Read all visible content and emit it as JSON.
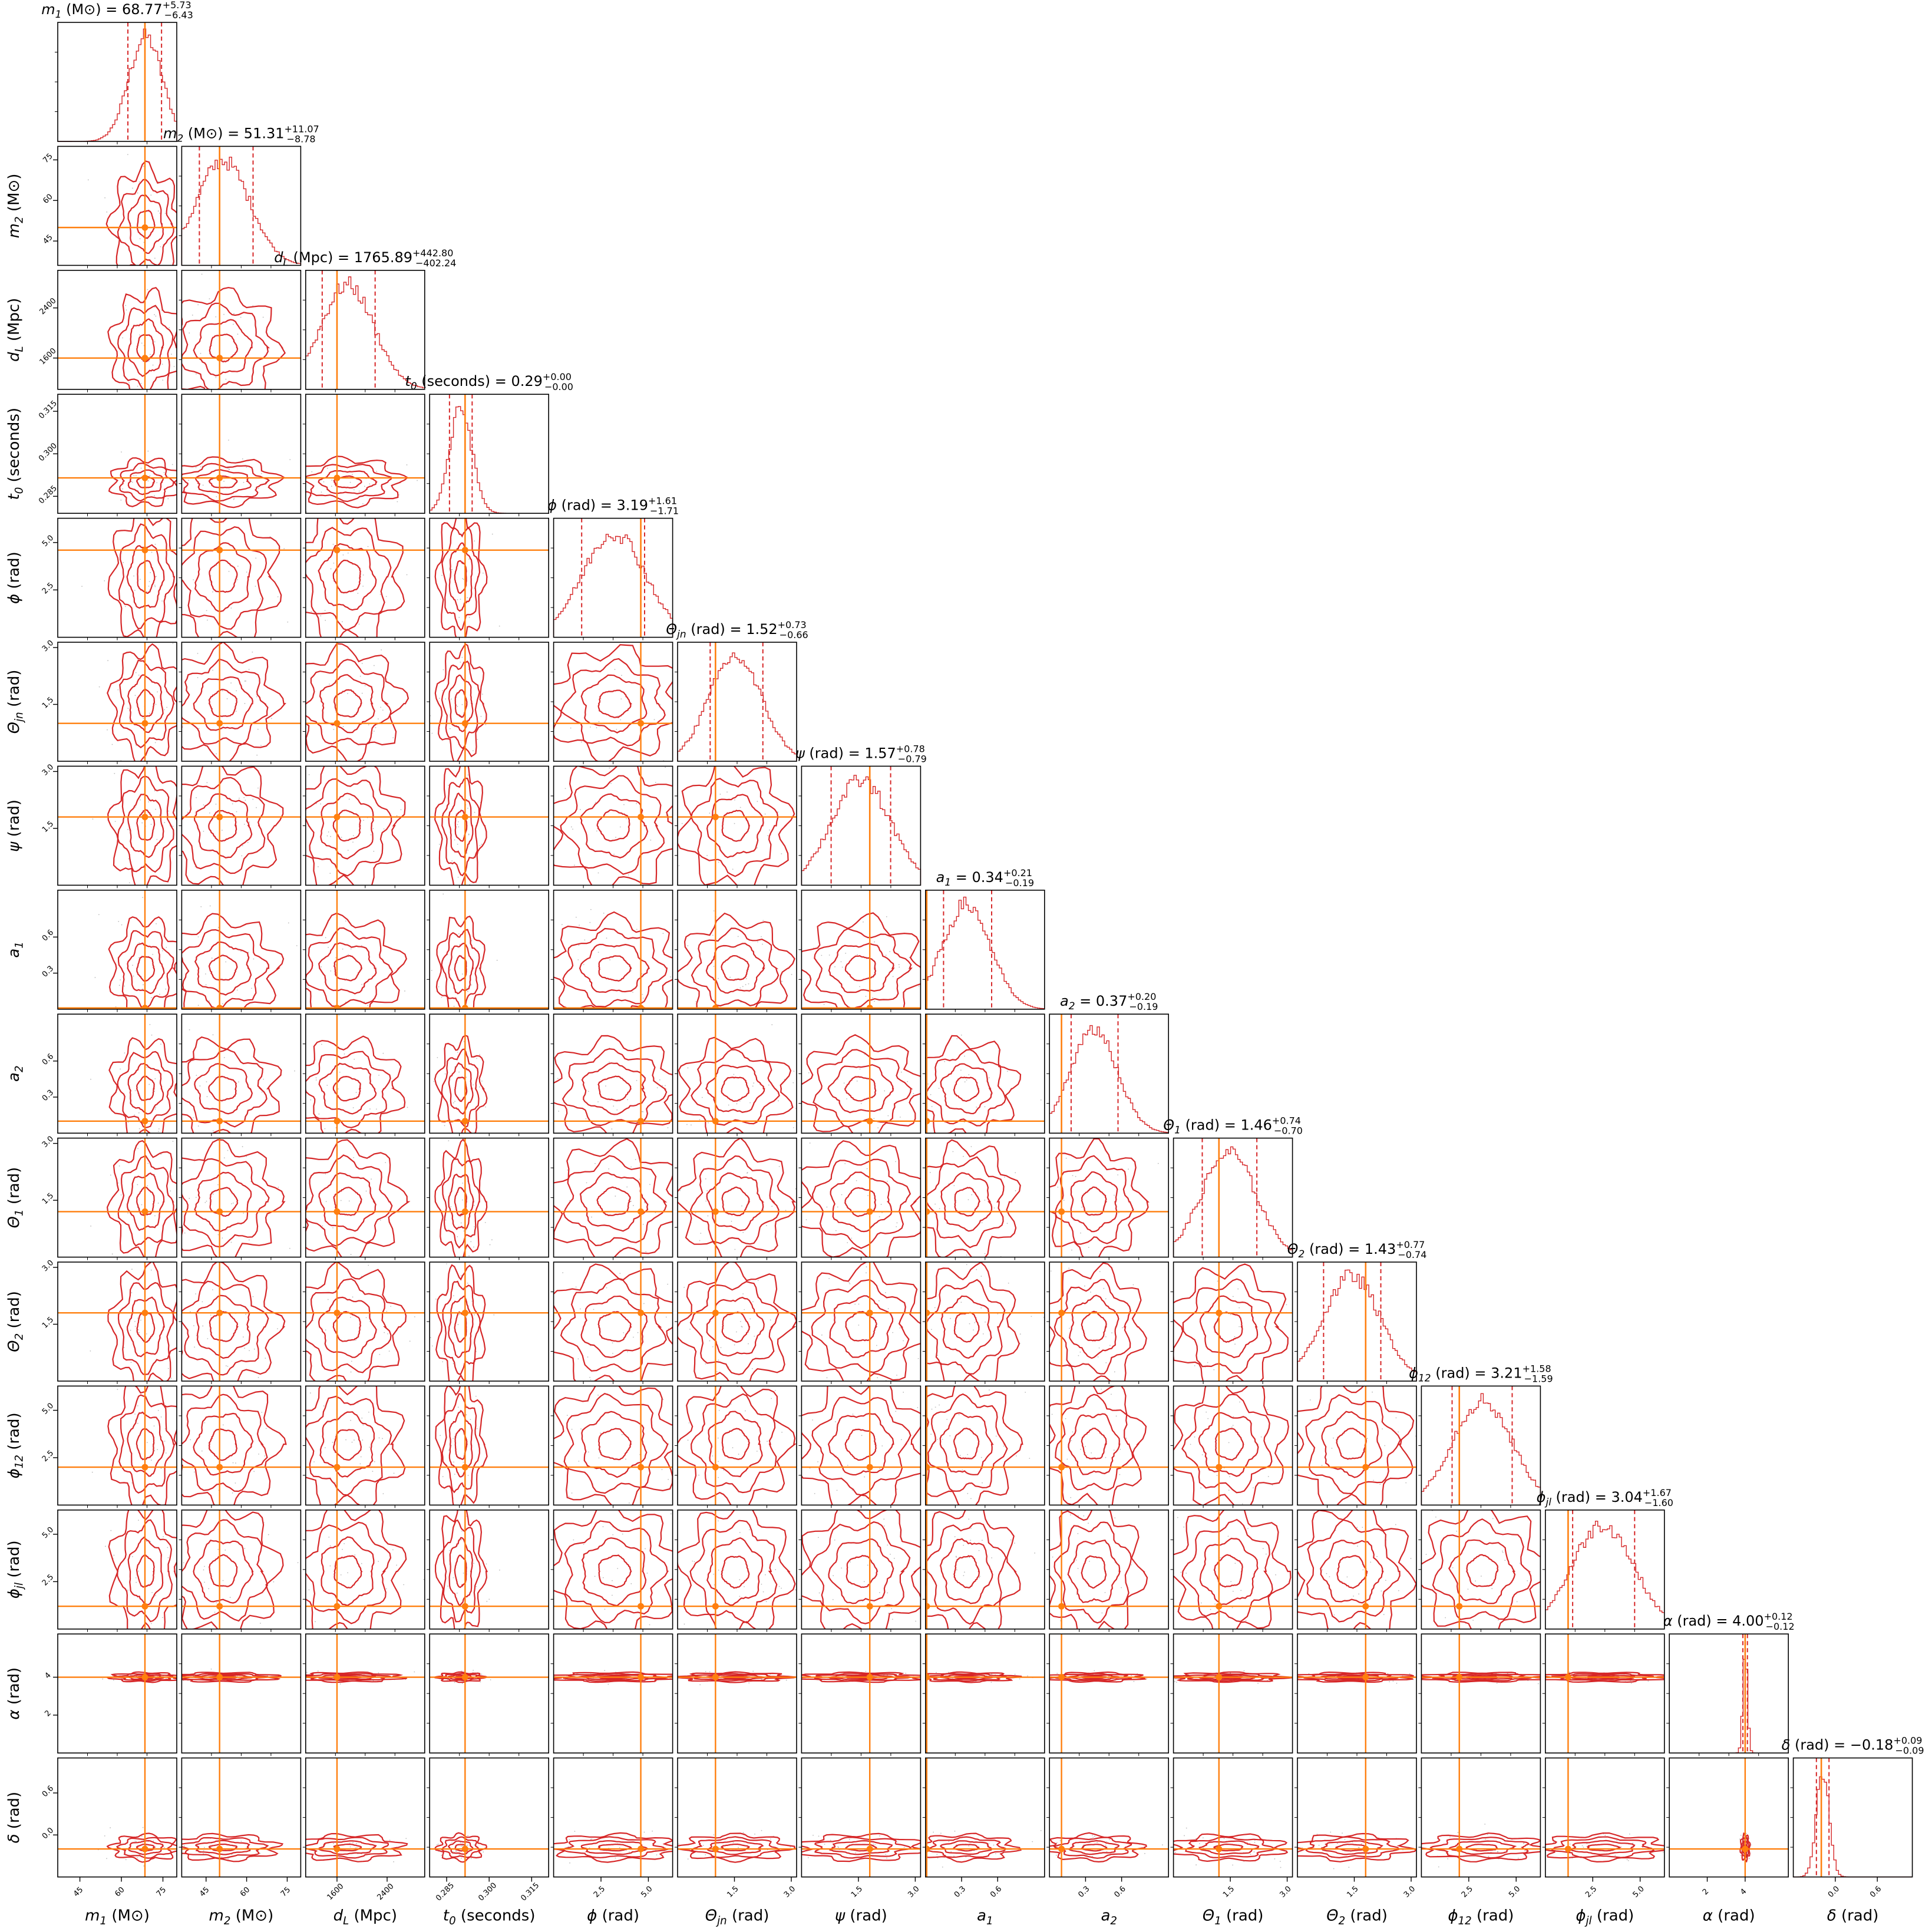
{
  "chart_data": {
    "type": "corner",
    "colors": {
      "posterior": "#d62728",
      "truth": "#ff7f0e",
      "frame": "#000000"
    },
    "parameters": [
      {
        "key": "m1",
        "label_main": "m",
        "label_sub": "1",
        "label_unit": " (M⊙)",
        "title_main": "m",
        "title_sub": "1",
        "title_unit": " (M⊙)",
        "title_value": " = 68.77",
        "title_sup": "+5.73",
        "title_low": "−6.43",
        "median": 68.77,
        "plus": 5.73,
        "minus": 6.43,
        "truth": 68.5,
        "range": [
          37,
          80
        ],
        "ticks": [
          45,
          60,
          75
        ],
        "tick_labels": [
          "45",
          "60",
          "75"
        ]
      },
      {
        "key": "m2",
        "label_main": "m",
        "label_sub": "2",
        "label_unit": " (M⊙)",
        "title_main": "m",
        "title_sub": "2",
        "title_unit": " (M⊙)",
        "title_value": " = 51.31",
        "title_sup": "+11.07",
        "title_low": "−8.78",
        "median": 51.31,
        "plus": 11.07,
        "minus": 8.78,
        "truth": 50,
        "range": [
          36,
          80
        ],
        "ticks": [
          45,
          60,
          75
        ],
        "tick_labels": [
          "45",
          "60",
          "75"
        ]
      },
      {
        "key": "dL",
        "label_main": "d",
        "label_sub": "L",
        "label_unit": " (Mpc)",
        "title_main": "d",
        "title_sub": "L",
        "title_unit": " (Mpc)",
        "title_value": " = 1765.89",
        "title_sup": "+442.80",
        "title_low": "−402.24",
        "median": 1765.89,
        "plus": 442.8,
        "minus": 402.24,
        "truth": 1600,
        "range": [
          1100,
          3000
        ],
        "ticks": [
          1600,
          2400
        ],
        "tick_labels": [
          "1600",
          "2400"
        ]
      },
      {
        "key": "t0",
        "label_main": "t",
        "label_sub": "0",
        "label_unit": " (seconds)",
        "title_main": "t",
        "title_sub": "0",
        "title_unit": " (seconds)",
        "title_value": " = 0.29",
        "title_sup": "+0.00",
        "title_low": "−0.00",
        "median": 0.29,
        "plus": 0.004,
        "minus": 0.004,
        "truth": 0.2915,
        "range": [
          0.279,
          0.321
        ],
        "ticks": [
          0.285,
          0.3,
          0.315
        ],
        "tick_labels": [
          "0.285",
          "0.300",
          "0.315"
        ]
      },
      {
        "key": "phi",
        "label_main": "ϕ",
        "label_sub": "",
        "label_unit": " (rad)",
        "title_main": "ϕ",
        "title_sub": "",
        "title_unit": " (rad)",
        "title_value": " = 3.19",
        "title_sup": "+1.61",
        "title_low": "−1.71",
        "median": 3.19,
        "plus": 1.61,
        "minus": 1.71,
        "truth": 4.6,
        "range": [
          0,
          6.28
        ],
        "ticks": [
          2.5,
          5.0
        ],
        "tick_labels": [
          "2.5",
          "5.0"
        ]
      },
      {
        "key": "thetajn",
        "label_main": "Θ",
        "label_sub": "jn",
        "label_unit": " (rad)",
        "title_main": "Θ",
        "title_sub": "jn",
        "title_unit": " (rad)",
        "title_value": " = 1.52",
        "title_sup": "+0.73",
        "title_low": "−0.66",
        "median": 1.52,
        "plus": 0.73,
        "minus": 0.66,
        "truth": 1.0,
        "range": [
          0,
          3.14
        ],
        "ticks": [
          1.5,
          3.0
        ],
        "tick_labels": [
          "1.5",
          "3.0"
        ]
      },
      {
        "key": "psi",
        "label_main": "ψ",
        "label_sub": "",
        "label_unit": " (rad)",
        "title_main": "ψ",
        "title_sub": "",
        "title_unit": " (rad)",
        "title_value": " = 1.57",
        "title_sup": "+0.78",
        "title_low": "−0.79",
        "median": 1.57,
        "plus": 0.78,
        "minus": 0.79,
        "truth": 1.8,
        "range": [
          0,
          3.14
        ],
        "ticks": [
          1.5,
          3.0
        ],
        "tick_labels": [
          "1.5",
          "3.0"
        ]
      },
      {
        "key": "a1",
        "label_main": "a",
        "label_sub": "1",
        "label_unit": "",
        "title_main": "a",
        "title_sub": "1",
        "title_unit": "",
        "title_value": " = 0.34",
        "title_sup": "+0.21",
        "title_low": "−0.19",
        "median": 0.34,
        "plus": 0.21,
        "minus": 0.19,
        "truth": 0.01,
        "range": [
          0,
          0.99
        ],
        "ticks": [
          0.3,
          0.6
        ],
        "tick_labels": [
          "0.3",
          "0.6"
        ]
      },
      {
        "key": "a2",
        "label_main": "a",
        "label_sub": "2",
        "label_unit": "",
        "title_main": "a",
        "title_sub": "2",
        "title_unit": "",
        "title_value": " = 0.37",
        "title_sup": "+0.20",
        "title_low": "−0.19",
        "median": 0.37,
        "plus": 0.2,
        "minus": 0.19,
        "truth": 0.1,
        "range": [
          0,
          0.99
        ],
        "ticks": [
          0.3,
          0.6
        ],
        "tick_labels": [
          "0.3",
          "0.6"
        ]
      },
      {
        "key": "theta1",
        "label_main": "Θ",
        "label_sub": "1",
        "label_unit": " (rad)",
        "title_main": "Θ",
        "title_sub": "1",
        "title_unit": " (rad)",
        "title_value": " = 1.46",
        "title_sup": "+0.74",
        "title_low": "−0.70",
        "median": 1.46,
        "plus": 0.74,
        "minus": 0.7,
        "truth": 1.2,
        "range": [
          0,
          3.14
        ],
        "ticks": [
          1.5,
          3.0
        ],
        "tick_labels": [
          "1.5",
          "3.0"
        ]
      },
      {
        "key": "theta2",
        "label_main": "Θ",
        "label_sub": "2",
        "label_unit": " (rad)",
        "title_main": "Θ",
        "title_sub": "2",
        "title_unit": " (rad)",
        "title_value": " = 1.43",
        "title_sup": "+0.77",
        "title_low": "−0.74",
        "median": 1.43,
        "plus": 0.77,
        "minus": 0.74,
        "truth": 1.8,
        "range": [
          0,
          3.14
        ],
        "ticks": [
          1.5,
          3.0
        ],
        "tick_labels": [
          "1.5",
          "3.0"
        ]
      },
      {
        "key": "phi12",
        "label_main": "ϕ",
        "label_sub": "12",
        "label_unit": " (rad)",
        "title_main": "ϕ",
        "title_sub": "12",
        "title_unit": " (rad)",
        "title_value": " = 3.21",
        "title_sup": "+1.58",
        "title_low": "−1.59",
        "median": 3.21,
        "plus": 1.58,
        "minus": 1.59,
        "truth": 2.0,
        "range": [
          0,
          6.28
        ],
        "ticks": [
          2.5,
          5.0
        ],
        "tick_labels": [
          "2.5",
          "5.0"
        ]
      },
      {
        "key": "phijl",
        "label_main": "ϕ",
        "label_sub": "jl",
        "label_unit": " (rad)",
        "title_main": "ϕ",
        "title_sub": "jl",
        "title_unit": " (rad)",
        "title_value": " = 3.04",
        "title_sup": "+1.67",
        "title_low": "−1.60",
        "median": 3.04,
        "plus": 1.67,
        "minus": 1.6,
        "truth": 1.2,
        "range": [
          0,
          6.28
        ],
        "ticks": [
          2.5,
          5.0
        ],
        "tick_labels": [
          "2.5",
          "5.0"
        ]
      },
      {
        "key": "alpha",
        "label_main": "α",
        "label_sub": "",
        "label_unit": " (rad)",
        "title_main": "α",
        "title_sub": "",
        "title_unit": " (rad)",
        "title_value": " = 4.00",
        "title_sup": "+0.12",
        "title_low": "−0.12",
        "median": 4.0,
        "plus": 0.12,
        "minus": 0.12,
        "truth": 4.0,
        "range": [
          0,
          6.28
        ],
        "ticks": [
          2,
          4
        ],
        "tick_labels": [
          "2",
          "4"
        ]
      },
      {
        "key": "delta",
        "label_main": "δ",
        "label_sub": "",
        "label_unit": " (rad)",
        "title_main": "δ",
        "title_sub": "",
        "title_unit": " (rad)",
        "title_value": " = −0.18",
        "title_sup": "+0.09",
        "title_low": "−0.09",
        "median": -0.18,
        "plus": 0.09,
        "minus": 0.09,
        "truth": -0.2,
        "range": [
          -0.6,
          1.1
        ],
        "ticks": [
          -0.0,
          0.6
        ],
        "tick_labels": [
          "0.0",
          "0.6"
        ]
      }
    ]
  }
}
